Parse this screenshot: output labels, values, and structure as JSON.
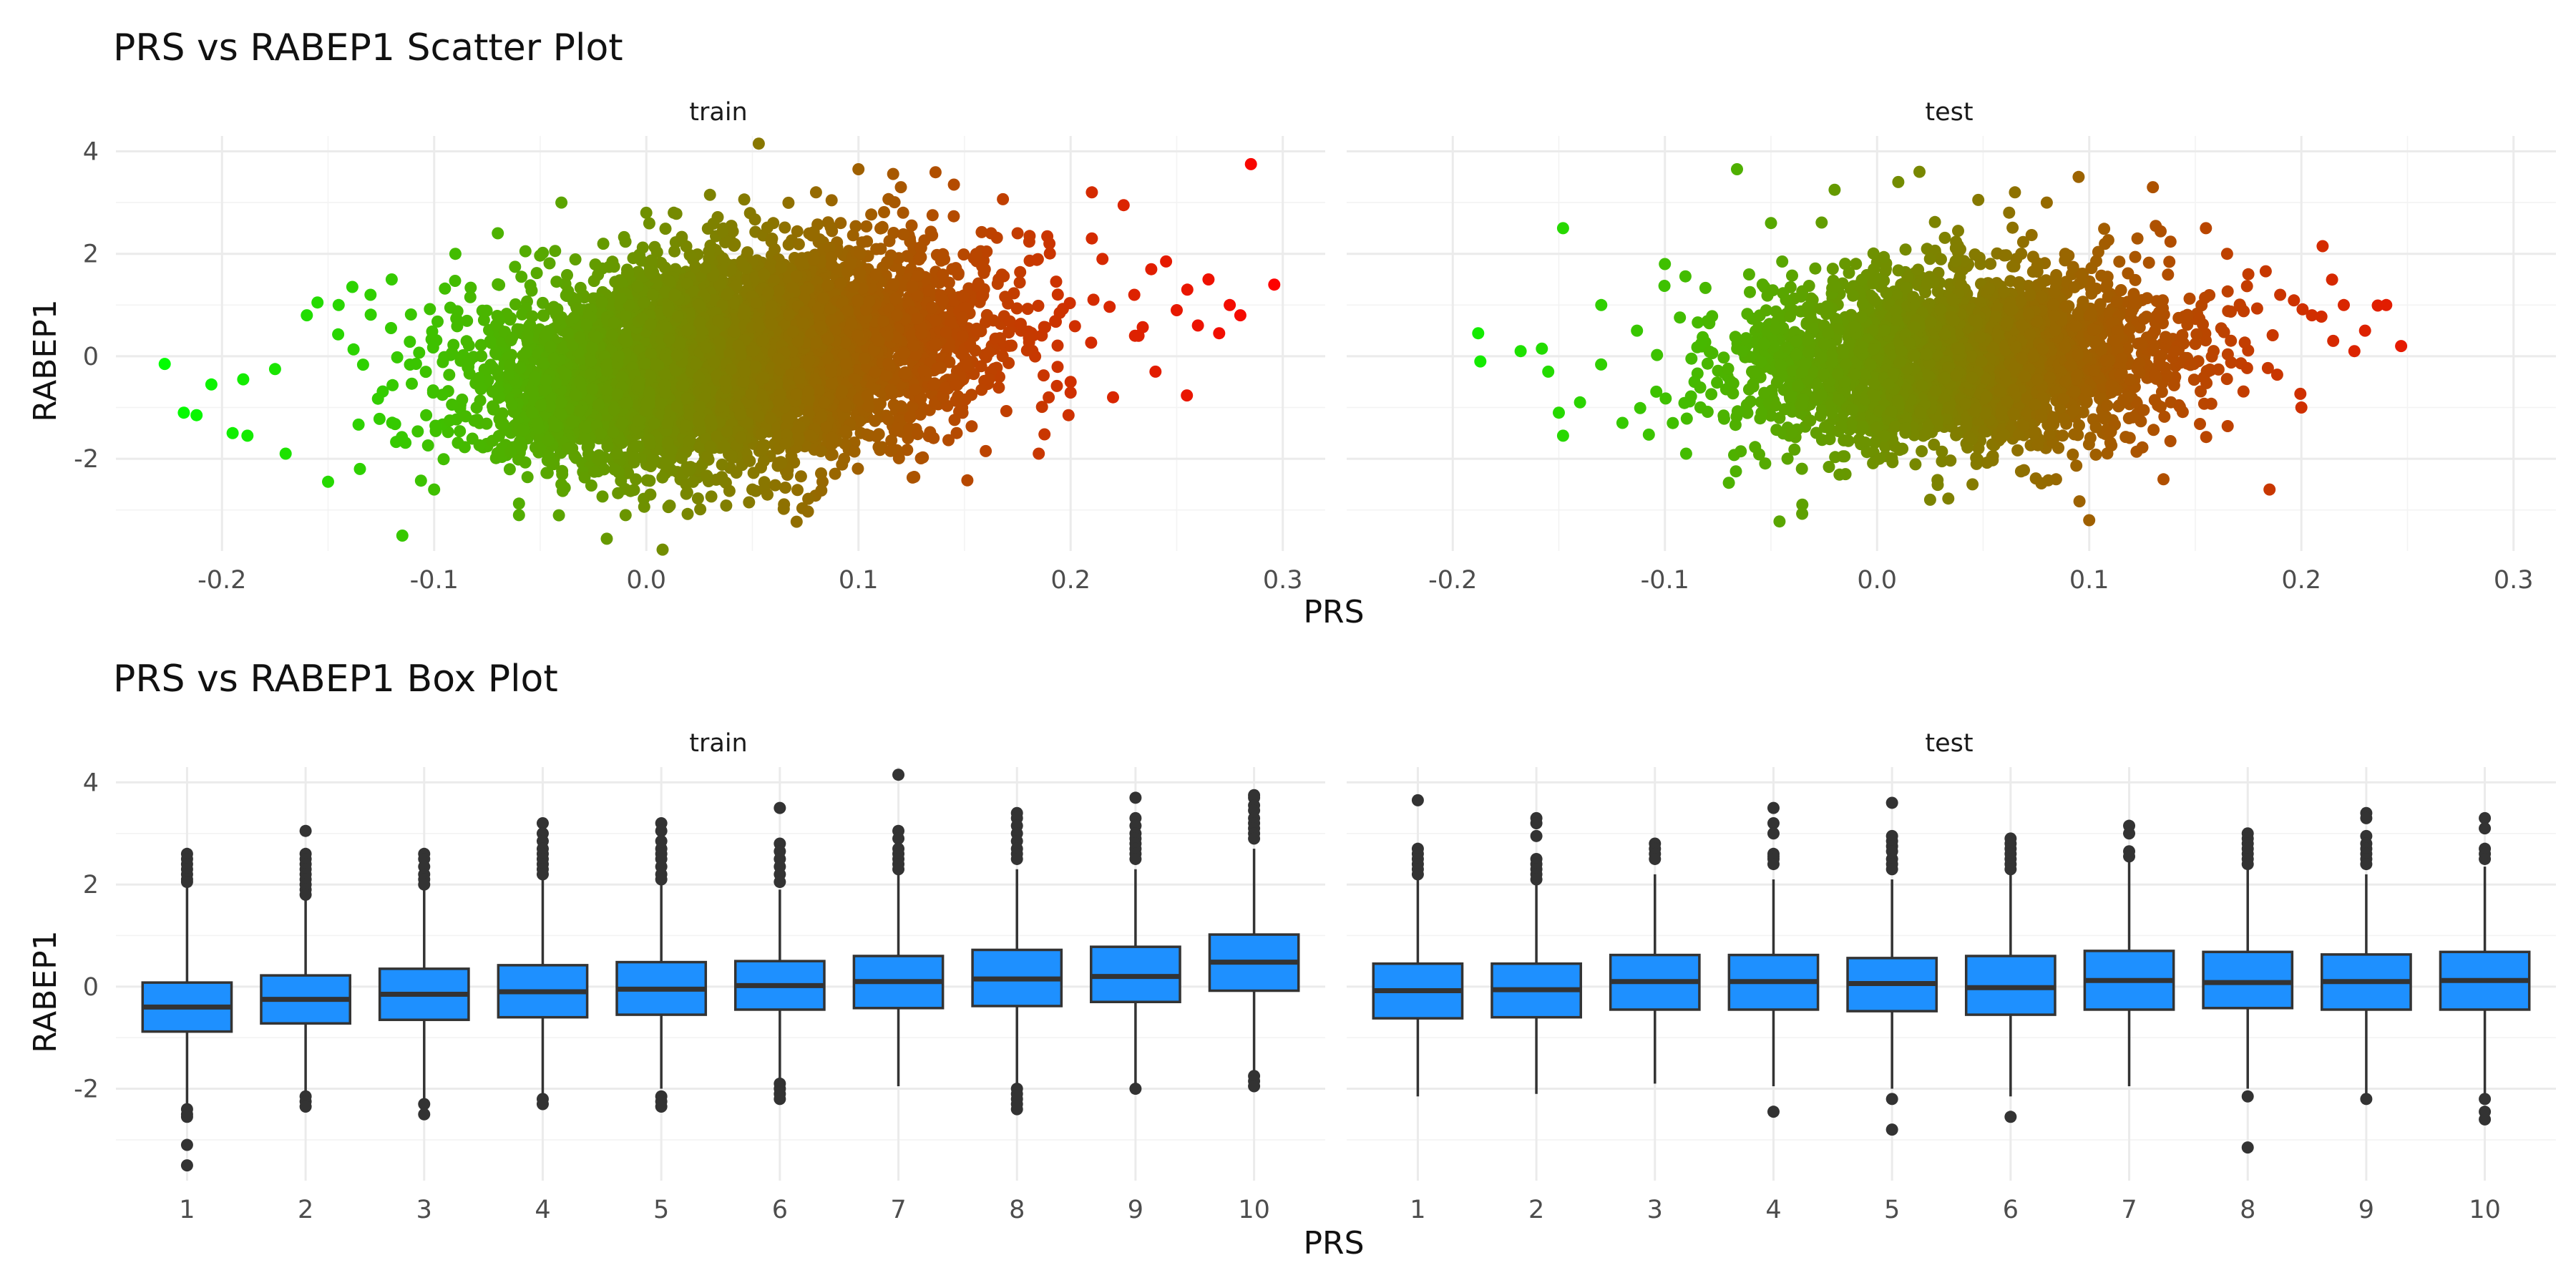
{
  "chart_data": [
    {
      "type": "scatter",
      "title": "PRS vs RABEP1 Scatter Plot",
      "xlabel": "PRS",
      "ylabel": "RABEP1",
      "xlim": [
        -0.25,
        0.32
      ],
      "ylim": [
        -3.8,
        4.3
      ],
      "x_ticks": [
        -0.2,
        -0.1,
        0.0,
        0.1,
        0.2,
        0.3
      ],
      "x_tick_labels": [
        "-0.2",
        "-0.1",
        "0.0",
        "0.1",
        "0.2",
        "0.3"
      ],
      "y_ticks": [
        -2,
        0,
        2,
        4
      ],
      "y_tick_labels": [
        "-2",
        "0",
        "2",
        "4"
      ],
      "grid": true,
      "legend": "none",
      "color_scale": {
        "by": "PRS",
        "low": "#00ff00",
        "high": "#ff0000"
      },
      "panels": [
        {
          "label": "train",
          "cloud": {
            "n": 6500,
            "x_mean": 0.04,
            "x_sd": 0.055,
            "y_mean": -0.05,
            "y_sd": 0.95,
            "slope": 4.5
          },
          "points": [
            {
              "x": -0.227,
              "y": -0.15
            },
            {
              "x": -0.218,
              "y": -1.1
            },
            {
              "x": -0.212,
              "y": -1.15
            },
            {
              "x": -0.205,
              "y": -0.55
            },
            {
              "x": -0.195,
              "y": -1.5
            },
            {
              "x": -0.19,
              "y": -0.45
            },
            {
              "x": -0.188,
              "y": -1.55
            },
            {
              "x": -0.175,
              "y": -0.25
            },
            {
              "x": -0.17,
              "y": -1.9
            },
            {
              "x": -0.16,
              "y": 0.8
            },
            {
              "x": -0.155,
              "y": 1.05
            },
            {
              "x": -0.15,
              "y": -2.45
            },
            {
              "x": -0.145,
              "y": 1.0
            },
            {
              "x": -0.135,
              "y": -2.2
            },
            {
              "x": -0.13,
              "y": 1.2
            },
            {
              "x": -0.12,
              "y": 1.5
            },
            {
              "x": -0.115,
              "y": -3.5
            },
            {
              "x": -0.1,
              "y": -2.6
            },
            {
              "x": -0.09,
              "y": 2.0
            },
            {
              "x": -0.07,
              "y": 2.4
            },
            {
              "x": -0.06,
              "y": -3.1
            },
            {
              "x": -0.04,
              "y": -2.5
            },
            {
              "x": -0.04,
              "y": 3.0
            },
            {
              "x": 0.0,
              "y": 2.8
            },
            {
              "x": 0.03,
              "y": 3.15
            },
            {
              "x": 0.05,
              "y": -2.6
            },
            {
              "x": 0.053,
              "y": 4.15
            },
            {
              "x": 0.08,
              "y": 3.2
            },
            {
              "x": 0.1,
              "y": 3.65
            },
            {
              "x": 0.12,
              "y": 3.3
            },
            {
              "x": 0.145,
              "y": 3.35
            },
            {
              "x": 0.16,
              "y": -1.85
            },
            {
              "x": 0.175,
              "y": 2.4
            },
            {
              "x": 0.185,
              "y": -1.9
            },
            {
              "x": 0.19,
              "y": 2.2
            },
            {
              "x": 0.2,
              "y": -0.5
            },
            {
              "x": 0.21,
              "y": 2.3
            },
            {
              "x": 0.21,
              "y": 3.2
            },
            {
              "x": 0.215,
              "y": 1.9
            },
            {
              "x": 0.22,
              "y": -0.8
            },
            {
              "x": 0.225,
              "y": 2.95
            },
            {
              "x": 0.23,
              "y": 1.2
            },
            {
              "x": 0.232,
              "y": 0.4
            },
            {
              "x": 0.238,
              "y": 1.7
            },
            {
              "x": 0.24,
              "y": -0.3
            },
            {
              "x": 0.245,
              "y": 1.85
            },
            {
              "x": 0.25,
              "y": 0.9
            },
            {
              "x": 0.255,
              "y": 1.3
            },
            {
              "x": 0.26,
              "y": 0.6
            },
            {
              "x": 0.265,
              "y": 1.5
            },
            {
              "x": 0.27,
              "y": 0.45
            },
            {
              "x": 0.275,
              "y": 1.0
            },
            {
              "x": 0.28,
              "y": 0.8
            },
            {
              "x": 0.285,
              "y": 3.75
            },
            {
              "x": 0.296,
              "y": 1.4
            }
          ]
        },
        {
          "label": "test",
          "cloud": {
            "n": 3000,
            "x_mean": 0.04,
            "x_sd": 0.052,
            "y_mean": -0.05,
            "y_sd": 0.85,
            "slope": 1.2
          },
          "points": [
            {
              "x": -0.188,
              "y": 0.45
            },
            {
              "x": -0.187,
              "y": -0.1
            },
            {
              "x": -0.168,
              "y": 0.1
            },
            {
              "x": -0.158,
              "y": 0.15
            },
            {
              "x": -0.155,
              "y": -0.3
            },
            {
              "x": -0.148,
              "y": 2.5
            },
            {
              "x": -0.15,
              "y": -1.1
            },
            {
              "x": -0.148,
              "y": -1.55
            },
            {
              "x": -0.14,
              "y": -0.9
            },
            {
              "x": -0.13,
              "y": 1.0
            },
            {
              "x": -0.12,
              "y": -1.3
            },
            {
              "x": -0.1,
              "y": 1.8
            },
            {
              "x": -0.09,
              "y": -1.9
            },
            {
              "x": -0.066,
              "y": 3.65
            },
            {
              "x": -0.05,
              "y": 2.6
            },
            {
              "x": -0.02,
              "y": 3.25
            },
            {
              "x": 0.01,
              "y": 3.4
            },
            {
              "x": 0.02,
              "y": 3.6
            },
            {
              "x": 0.025,
              "y": -2.8
            },
            {
              "x": 0.045,
              "y": -2.5
            },
            {
              "x": 0.065,
              "y": 3.2
            },
            {
              "x": 0.08,
              "y": 3.0
            },
            {
              "x": 0.095,
              "y": 3.5
            },
            {
              "x": 0.1,
              "y": -3.2
            },
            {
              "x": 0.13,
              "y": 3.3
            },
            {
              "x": 0.135,
              "y": -2.4
            },
            {
              "x": 0.155,
              "y": 2.5
            },
            {
              "x": 0.165,
              "y": 2.0
            },
            {
              "x": 0.175,
              "y": 1.6
            },
            {
              "x": 0.185,
              "y": -2.6
            },
            {
              "x": 0.19,
              "y": 1.2
            },
            {
              "x": 0.2,
              "y": -1.0
            },
            {
              "x": 0.205,
              "y": 0.8
            },
            {
              "x": 0.21,
              "y": 2.15
            },
            {
              "x": 0.215,
              "y": 0.3
            },
            {
              "x": 0.22,
              "y": 1.0
            },
            {
              "x": 0.225,
              "y": 0.1
            },
            {
              "x": 0.23,
              "y": 0.5
            },
            {
              "x": 0.24,
              "y": 1.0
            },
            {
              "x": 0.247,
              "y": 0.2
            }
          ]
        }
      ]
    },
    {
      "type": "box",
      "title": "PRS vs RABEP1 Box Plot",
      "xlabel": "PRS",
      "ylabel": "RABEP1",
      "categories": [
        "1",
        "2",
        "3",
        "4",
        "5",
        "6",
        "7",
        "8",
        "9",
        "10"
      ],
      "ylim": [
        -3.8,
        4.3
      ],
      "y_ticks": [
        -2,
        0,
        2,
        4
      ],
      "y_tick_labels": [
        "-2",
        "0",
        "2",
        "4"
      ],
      "grid": true,
      "legend": "none",
      "box_color": "#1e90ff",
      "line_color": "#333333",
      "panels": [
        {
          "label": "train",
          "boxes": [
            {
              "q1": -0.88,
              "median": -0.4,
              "q3": 0.08,
              "low": -2.3,
              "high": 2.0,
              "outliers": [
                2.6,
                2.5,
                2.4,
                2.3,
                2.2,
                2.1,
                2.05,
                -2.4,
                -2.5,
                -2.55,
                -3.1,
                -3.5
              ]
            },
            {
              "q1": -0.72,
              "median": -0.25,
              "q3": 0.22,
              "low": -2.1,
              "high": 1.7,
              "outliers": [
                3.05,
                2.6,
                2.5,
                2.4,
                2.3,
                2.2,
                2.1,
                2.0,
                1.9,
                1.8,
                -2.15,
                -2.25,
                -2.35
              ]
            },
            {
              "q1": -0.65,
              "median": -0.15,
              "q3": 0.35,
              "low": -2.2,
              "high": 1.9,
              "outliers": [
                2.6,
                2.5,
                2.35,
                2.2,
                2.1,
                2.0,
                -2.3,
                -2.5
              ]
            },
            {
              "q1": -0.6,
              "median": -0.1,
              "q3": 0.42,
              "low": -2.1,
              "high": 2.1,
              "outliers": [
                3.2,
                3.0,
                2.85,
                2.7,
                2.6,
                2.5,
                2.4,
                2.3,
                2.2,
                -2.2,
                -2.3
              ]
            },
            {
              "q1": -0.55,
              "median": -0.05,
              "q3": 0.48,
              "low": -2.0,
              "high": 2.0,
              "outliers": [
                3.2,
                3.05,
                2.85,
                2.7,
                2.6,
                2.5,
                2.35,
                2.2,
                2.1,
                -2.15,
                -2.25,
                -2.35
              ]
            },
            {
              "q1": -0.45,
              "median": 0.02,
              "q3": 0.5,
              "low": -1.8,
              "high": 1.9,
              "outliers": [
                3.5,
                2.8,
                2.65,
                2.5,
                2.35,
                2.2,
                2.05,
                -1.9,
                -2.0,
                -2.1,
                -2.2
              ]
            },
            {
              "q1": -0.42,
              "median": 0.1,
              "q3": 0.6,
              "low": -1.95,
              "high": 2.2,
              "outliers": [
                4.15,
                3.05,
                2.9,
                2.7,
                2.6,
                2.5,
                2.4,
                2.3
              ]
            },
            {
              "q1": -0.38,
              "median": 0.15,
              "q3": 0.72,
              "low": -1.9,
              "high": 2.3,
              "outliers": [
                3.4,
                3.3,
                3.15,
                3.0,
                2.85,
                2.7,
                2.6,
                2.5,
                -2.0,
                -2.1,
                -2.2,
                -2.3,
                -2.4
              ]
            },
            {
              "q1": -0.3,
              "median": 0.2,
              "q3": 0.78,
              "low": -1.95,
              "high": 2.3,
              "outliers": [
                3.7,
                3.3,
                3.15,
                3.0,
                2.9,
                2.8,
                2.7,
                2.6,
                2.5,
                -2.0
              ]
            },
            {
              "q1": -0.08,
              "median": 0.48,
              "q3": 1.02,
              "low": -1.65,
              "high": 2.7,
              "outliers": [
                3.75,
                3.7,
                3.55,
                3.45,
                3.3,
                3.2,
                3.1,
                3.0,
                2.9,
                -1.75,
                -1.85,
                -1.95
              ]
            }
          ]
        },
        {
          "label": "test",
          "boxes": [
            {
              "q1": -0.62,
              "median": -0.08,
              "q3": 0.45,
              "low": -2.15,
              "high": 2.1,
              "outliers": [
                3.65,
                2.7,
                2.6,
                2.5,
                2.4,
                2.3,
                2.2
              ]
            },
            {
              "q1": -0.6,
              "median": -0.06,
              "q3": 0.45,
              "low": -2.1,
              "high": 2.0,
              "outliers": [
                3.3,
                3.2,
                2.95,
                2.5,
                2.4,
                2.3,
                2.2,
                2.1
              ]
            },
            {
              "q1": -0.45,
              "median": 0.1,
              "q3": 0.62,
              "low": -1.9,
              "high": 2.2,
              "outliers": [
                2.8,
                2.7,
                2.6,
                2.5
              ]
            },
            {
              "q1": -0.45,
              "median": 0.1,
              "q3": 0.62,
              "low": -1.95,
              "high": 2.1,
              "outliers": [
                3.5,
                3.2,
                3.0,
                2.6,
                2.55,
                2.5,
                2.4,
                -2.45
              ]
            },
            {
              "q1": -0.48,
              "median": 0.06,
              "q3": 0.56,
              "low": -2.0,
              "high": 2.1,
              "outliers": [
                3.6,
                2.95,
                2.85,
                2.75,
                2.65,
                2.5,
                2.4,
                2.3,
                -2.2,
                -2.8
              ]
            },
            {
              "q1": -0.55,
              "median": -0.02,
              "q3": 0.6,
              "low": -2.15,
              "high": 2.2,
              "outliers": [
                2.9,
                2.8,
                2.7,
                2.6,
                2.5,
                2.4,
                2.3,
                -2.55
              ]
            },
            {
              "q1": -0.45,
              "median": 0.12,
              "q3": 0.7,
              "low": -1.95,
              "high": 2.5,
              "outliers": [
                3.15,
                3.0,
                2.65,
                2.55
              ]
            },
            {
              "q1": -0.42,
              "median": 0.08,
              "q3": 0.68,
              "low": -2.0,
              "high": 2.3,
              "outliers": [
                3.0,
                2.9,
                2.8,
                2.7,
                2.6,
                2.5,
                2.4,
                -2.15,
                -3.15
              ]
            },
            {
              "q1": -0.45,
              "median": 0.1,
              "q3": 0.63,
              "low": -2.1,
              "high": 2.2,
              "outliers": [
                3.4,
                3.3,
                2.95,
                2.8,
                2.7,
                2.6,
                2.5,
                2.4,
                -2.2
              ]
            },
            {
              "q1": -0.45,
              "median": 0.12,
              "q3": 0.68,
              "low": -2.15,
              "high": 2.35,
              "outliers": [
                3.3,
                3.1,
                2.7,
                2.6,
                2.5,
                -2.2,
                -2.45,
                -2.6
              ]
            }
          ]
        }
      ]
    }
  ]
}
